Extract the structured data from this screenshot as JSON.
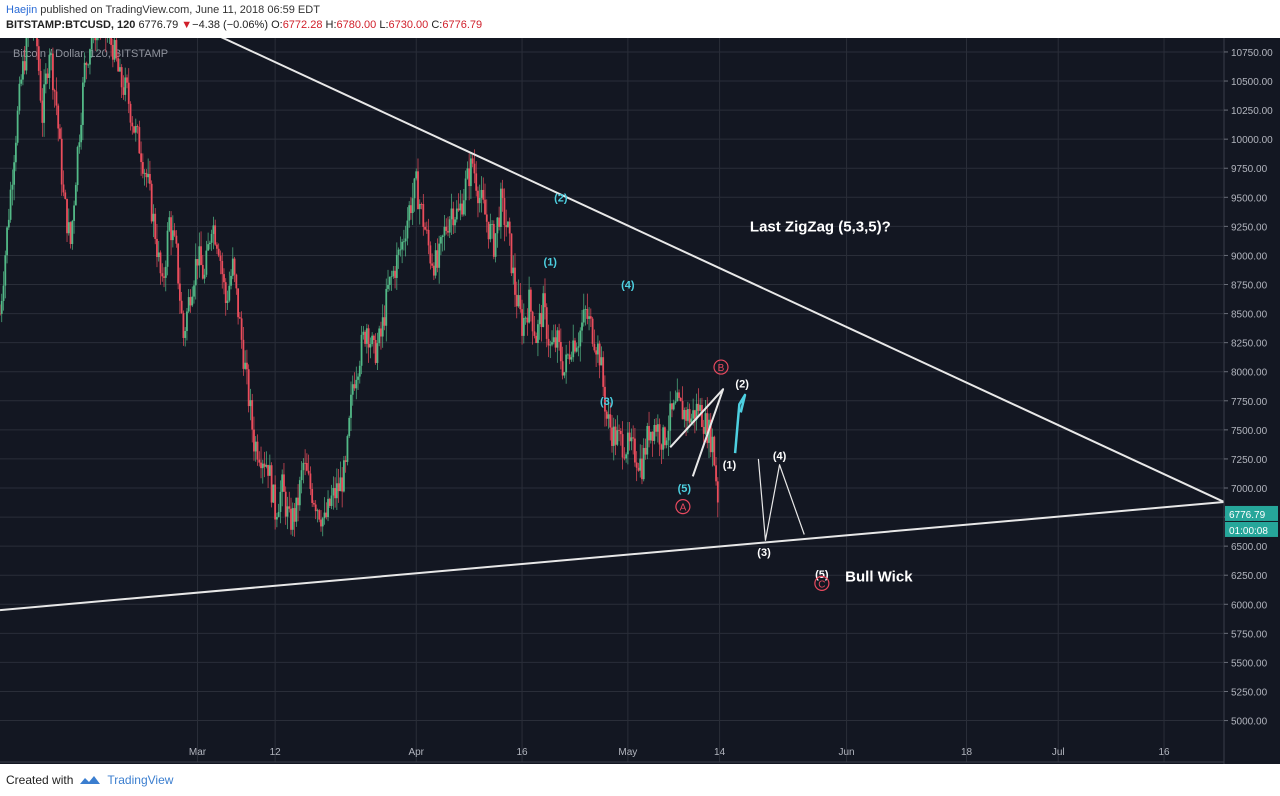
{
  "header": {
    "author": "Haejin",
    "published_text": " published on TradingView.com, June 11, 2018 06:59 EDT",
    "symbol": "BITSTAMP:BTCUSD, 120",
    "last": "6776.79",
    "arrow": "▼",
    "change": "−4.38 (−0.06%)",
    "open_label": "O:",
    "open": "6772.28",
    "high_label": "H:",
    "high": "6780.00",
    "low_label": "L:",
    "low": "6730.00",
    "close_label": "C:",
    "close": "6776.79"
  },
  "footer": {
    "created_with": "Created with",
    "brand": "TradingView",
    "logo_icon": "tradingview-logo-icon"
  },
  "colors": {
    "background": "#131722",
    "grid": "#2a2e39",
    "up": "#53b987",
    "down": "#eb4d5c",
    "white_line": "#e8e8e8",
    "cyan": "#4dd0e1",
    "red_label": "#e84a5f",
    "price_badge": "#26a69a"
  },
  "chart_data": {
    "type": "candlestick",
    "watermark": "Bitcoin / Dollar, 120, BITSTAMP",
    "price_label": "6776.79",
    "countdown_label": "01:00:08",
    "y_ticks": [
      "10750.00",
      "10500.00",
      "10250.00",
      "10000.00",
      "9750.00",
      "9500.00",
      "9250.00",
      "9000.00",
      "8750.00",
      "8500.00",
      "8250.00",
      "8000.00",
      "7750.00",
      "7500.00",
      "7250.00",
      "7000.00",
      "6750.00",
      "6500.00",
      "6250.00",
      "6000.00",
      "5750.00",
      "5500.00",
      "5250.00",
      "5000.00"
    ],
    "y_tick_values": [
      10750,
      10500,
      10250,
      10000,
      9750,
      9500,
      9250,
      9000,
      8750,
      8500,
      8250,
      8000,
      7750,
      7500,
      7250,
      7000,
      6750,
      6500,
      6250,
      6000,
      5750,
      5500,
      5250,
      5000
    ],
    "x_ticks": [
      {
        "label": "Mar",
        "day": 28
      },
      {
        "label": "12",
        "day": 39
      },
      {
        "label": "Apr",
        "day": 59
      },
      {
        "label": "16",
        "day": 74
      },
      {
        "label": "May",
        "day": 89
      },
      {
        "label": "14",
        "day": 102
      },
      {
        "label": "Jun",
        "day": 120
      },
      {
        "label": "18",
        "day": 137
      },
      {
        "label": "Jul",
        "day": 150
      },
      {
        "label": "16",
        "day": 165
      }
    ],
    "price_path": [
      [
        0,
        8500
      ],
      [
        1,
        9200
      ],
      [
        2,
        9900
      ],
      [
        3,
        10500
      ],
      [
        4,
        10900
      ],
      [
        5,
        11000
      ],
      [
        6,
        10200
      ],
      [
        7,
        10800
      ],
      [
        8,
        10300
      ],
      [
        9,
        9500
      ],
      [
        10,
        9100
      ],
      [
        11,
        9900
      ],
      [
        12,
        10600
      ],
      [
        13,
        10900
      ],
      [
        14,
        11000
      ],
      [
        15,
        10900
      ],
      [
        16,
        10800
      ],
      [
        17,
        10500
      ],
      [
        18,
        10400
      ],
      [
        19,
        10100
      ],
      [
        20,
        9900
      ],
      [
        21,
        9600
      ],
      [
        22,
        9200
      ],
      [
        23,
        8700
      ],
      [
        24,
        9300
      ],
      [
        25,
        9000
      ],
      [
        26,
        8300
      ],
      [
        27,
        8700
      ],
      [
        28,
        9000
      ],
      [
        29,
        8800
      ],
      [
        30,
        9300
      ],
      [
        31,
        9100
      ],
      [
        32,
        8600
      ],
      [
        33,
        8900
      ],
      [
        34,
        8400
      ],
      [
        35,
        7900
      ],
      [
        36,
        7400
      ],
      [
        37,
        7300
      ],
      [
        38,
        7200
      ],
      [
        39,
        6800
      ],
      [
        40,
        7000
      ],
      [
        41,
        6700
      ],
      [
        42,
        6800
      ],
      [
        43,
        7200
      ],
      [
        44,
        7000
      ],
      [
        45,
        6850
      ],
      [
        46,
        6700
      ],
      [
        47,
        6900
      ],
      [
        48,
        7000
      ],
      [
        49,
        7150
      ],
      [
        50,
        7900
      ],
      [
        51,
        8150
      ],
      [
        52,
        8400
      ],
      [
        53,
        8150
      ],
      [
        54,
        8300
      ],
      [
        55,
        8700
      ],
      [
        56,
        8900
      ],
      [
        57,
        9100
      ],
      [
        58,
        9400
      ],
      [
        59,
        9600
      ],
      [
        60,
        9300
      ],
      [
        61,
        9000
      ],
      [
        62,
        8900
      ],
      [
        63,
        9200
      ],
      [
        64,
        9400
      ],
      [
        65,
        9350
      ],
      [
        66,
        9600
      ],
      [
        67,
        9800
      ],
      [
        68,
        9500
      ],
      [
        69,
        9300
      ],
      [
        70,
        9100
      ],
      [
        71,
        9450
      ],
      [
        72,
        9200
      ],
      [
        73,
        8700
      ],
      [
        74,
        8400
      ],
      [
        75,
        8600
      ],
      [
        76,
        8300
      ],
      [
        77,
        8550
      ],
      [
        78,
        8200
      ],
      [
        79,
        8250
      ],
      [
        80,
        8000
      ],
      [
        81,
        8250
      ],
      [
        82,
        8300
      ],
      [
        83,
        8500
      ],
      [
        84,
        8350
      ],
      [
        85,
        8150
      ],
      [
        86,
        7600
      ],
      [
        87,
        7450
      ],
      [
        88,
        7400
      ],
      [
        89,
        7350
      ],
      [
        90,
        7300
      ],
      [
        91,
        7200
      ],
      [
        92,
        7500
      ],
      [
        93,
        7550
      ],
      [
        94,
        7400
      ],
      [
        95,
        7600
      ],
      [
        96,
        7700
      ],
      [
        97,
        7650
      ],
      [
        98,
        7600
      ],
      [
        99,
        7700
      ],
      [
        100,
        7550
      ],
      [
        101,
        7400
      ],
      [
        102,
        6780
      ]
    ],
    "resistance_line": {
      "from": [
        27,
        11000
      ],
      "to": [
        173.5,
        6880
      ]
    },
    "support_line": {
      "from": [
        0,
        5950
      ],
      "to": [
        173.5,
        6880
      ]
    },
    "projection_path": [
      [
        107.5,
        7250
      ],
      [
        108.5,
        6550
      ],
      [
        110.5,
        7200
      ],
      [
        114,
        6600
      ]
    ],
    "white_wedge": [
      [
        95,
        7350
      ],
      [
        102.5,
        7850
      ],
      [
        98.2,
        7100
      ]
    ],
    "cyan_paths": [
      [
        [
          104.2,
          7300
        ],
        [
          104.8,
          7720
        ],
        [
          105.6,
          7800
        ],
        [
          105.0,
          7650
        ]
      ]
    ],
    "labels": [
      {
        "text": "(2)",
        "day": 79.5,
        "price": 9500,
        "color": "cyan"
      },
      {
        "text": "(1)",
        "day": 78,
        "price": 8950,
        "color": "cyan"
      },
      {
        "text": "(4)",
        "day": 89,
        "price": 8750,
        "color": "cyan"
      },
      {
        "text": "(3)",
        "day": 86,
        "price": 7750,
        "color": "cyan"
      },
      {
        "text": "(5)",
        "day": 97,
        "price": 7000,
        "color": "cyan"
      },
      {
        "text": "(2)",
        "day": 105.2,
        "price": 7900,
        "color": "white"
      },
      {
        "text": "(1)",
        "day": 103.4,
        "price": 7200,
        "color": "white"
      },
      {
        "text": "(4)",
        "day": 110.5,
        "price": 7280,
        "color": "white"
      },
      {
        "text": "(3)",
        "day": 108.3,
        "price": 6450,
        "color": "white"
      },
      {
        "text": "(5)",
        "day": 116.5,
        "price": 6260,
        "color": "white"
      }
    ],
    "circle_labels": [
      {
        "text": "B",
        "day": 102.2,
        "price": 8040,
        "color": "red"
      },
      {
        "text": "A",
        "day": 96.8,
        "price": 6840,
        "color": "red"
      },
      {
        "text": "C",
        "day": 116.5,
        "price": 6180,
        "color": "red"
      }
    ],
    "annotations": [
      {
        "text": "Last ZigZag (5,3,5)?",
        "day": 106.3,
        "price": 9250
      },
      {
        "text": "Bull Wick",
        "day": 119.8,
        "price": 6240
      }
    ],
    "xlim": [
      0,
      173.5
    ],
    "ylim": [
      4850,
      10870
    ]
  }
}
